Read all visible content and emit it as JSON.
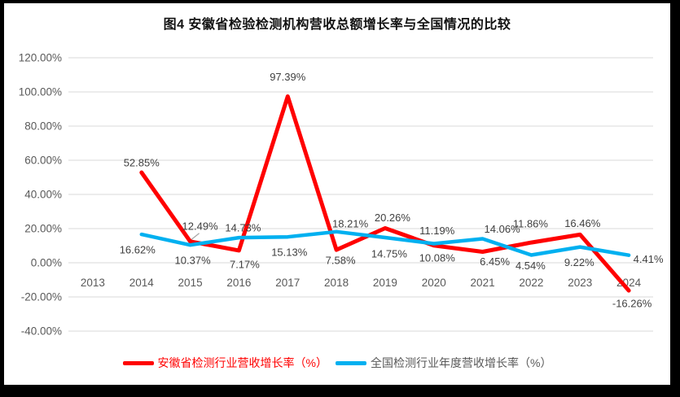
{
  "chart_data": {
    "type": "line",
    "title": "图4 安徽省检验检测机构营收总额增长率与全国情况的比较",
    "categories": [
      "2013",
      "2014",
      "2015",
      "2016",
      "2017",
      "2018",
      "2019",
      "2020",
      "2021",
      "2022",
      "2023",
      "2024"
    ],
    "series": [
      {
        "name": "安徽省检测行业营收增长率（%）",
        "color": "#FF0000",
        "legend_text_color": "#FF0000",
        "values": [
          null,
          52.85,
          12.49,
          7.17,
          97.39,
          7.58,
          20.26,
          10.08,
          6.45,
          11.86,
          16.46,
          -16.26
        ]
      },
      {
        "name": "全国检测行业年度营收增长率（%）",
        "color": "#00B0F0",
        "legend_text_color": "#595959",
        "values": [
          null,
          16.62,
          10.37,
          14.73,
          15.13,
          18.21,
          14.75,
          11.19,
          14.06,
          4.54,
          9.22,
          4.41
        ]
      }
    ],
    "y_ticks": [
      120,
      100,
      80,
      60,
      40,
      20,
      0,
      -20,
      -40
    ],
    "ylim": [
      -40,
      120
    ],
    "y_tick_suffix": "%",
    "data_label_suffix": "%",
    "grid": true,
    "legend_position": "bottom",
    "gridline_color": "#D9D9D9",
    "axis_text_color": "#595959",
    "data_label_color": "#404040",
    "leader_line_color": "#A6A6A6"
  }
}
